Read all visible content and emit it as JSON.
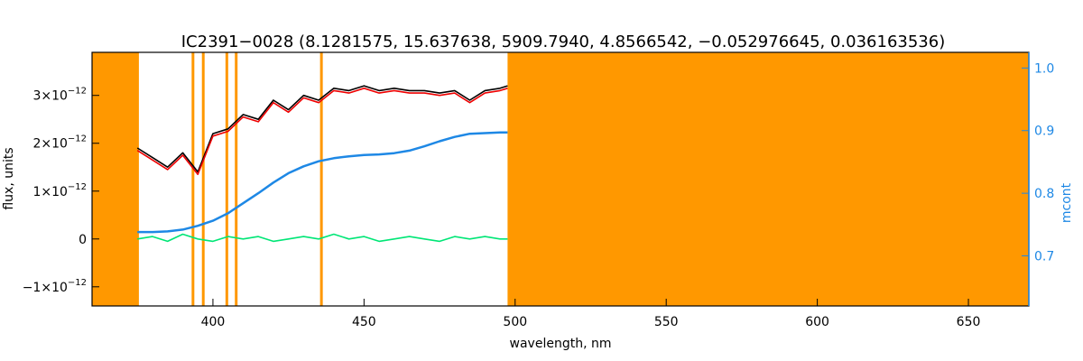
{
  "chart_data": {
    "type": "line",
    "title": "IC2391−0028    (8.1281575, 15.637638, 5909.7940, 4.8566542, −0.052976645, 0.036163536)",
    "xlabel": "wavelength, nm",
    "ylabel": "flux, units",
    "ylabel_right": "mcont",
    "xlim": [
      360,
      670
    ],
    "ylim": [
      -1.4e-12,
      3.9e-12
    ],
    "ylim_right": [
      0.62,
      1.025
    ],
    "x_ticks": [
      {
        "value": 400,
        "label": "400"
      },
      {
        "value": 450,
        "label": "450"
      },
      {
        "value": 500,
        "label": "500"
      },
      {
        "value": 550,
        "label": "550"
      },
      {
        "value": 600,
        "label": "600"
      },
      {
        "value": 650,
        "label": "650"
      }
    ],
    "y_ticks": [
      {
        "value": -1e-12,
        "mantissa": "−1×10",
        "exp": "−12"
      },
      {
        "value": 0,
        "mantissa": "0",
        "exp": ""
      },
      {
        "value": 1e-12,
        "mantissa": "1×10",
        "exp": "−12"
      },
      {
        "value": 2e-12,
        "mantissa": "2×10",
        "exp": "−12"
      },
      {
        "value": 3e-12,
        "mantissa": "3×10",
        "exp": "−12"
      }
    ],
    "y_ticks_right": [
      {
        "value": 0.7,
        "label": "0.7"
      },
      {
        "value": 0.8,
        "label": "0.8"
      },
      {
        "value": 0.9,
        "label": "0.9"
      },
      {
        "value": 1.0,
        "label": "1.0"
      }
    ],
    "masked_regions": [
      [
        360,
        375.5
      ],
      [
        497.5,
        670
      ]
    ],
    "masked_lines": [
      393.4,
      396.8,
      404.6,
      407.7,
      435.9
    ],
    "series": [
      {
        "color": "#000000",
        "x": [
          375,
          380,
          385,
          390,
          395,
          400,
          405,
          410,
          415,
          420,
          425,
          430,
          435,
          440,
          445,
          450,
          455,
          460,
          465,
          470,
          475,
          480,
          485,
          490,
          495,
          497.5
        ],
        "y": [
          1.9e-12,
          1.7e-12,
          1.5e-12,
          1.8e-12,
          1.4e-12,
          2.2e-12,
          2.3e-12,
          2.6e-12,
          2.5e-12,
          2.9e-12,
          2.7e-12,
          3e-12,
          2.9e-12,
          3.15e-12,
          3.1e-12,
          3.2e-12,
          3.1e-12,
          3.15e-12,
          3.1e-12,
          3.1e-12,
          3.05e-12,
          3.1e-12,
          2.9e-12,
          3.1e-12,
          3.15e-12,
          3.2e-12
        ]
      },
      {
        "color": "#ee0000",
        "x": [
          375,
          380,
          385,
          390,
          395,
          400,
          405,
          410,
          415,
          420,
          425,
          430,
          435,
          440,
          445,
          450,
          455,
          460,
          465,
          470,
          475,
          480,
          485,
          490,
          495,
          497.5
        ],
        "y": [
          1.85e-12,
          1.65e-12,
          1.45e-12,
          1.75e-12,
          1.35e-12,
          2.15e-12,
          2.25e-12,
          2.55e-12,
          2.45e-12,
          2.85e-12,
          2.65e-12,
          2.95e-12,
          2.85e-12,
          3.1e-12,
          3.05e-12,
          3.15e-12,
          3.05e-12,
          3.1e-12,
          3.05e-12,
          3.05e-12,
          3e-12,
          3.05e-12,
          2.85e-12,
          3.05e-12,
          3.1e-12,
          3.15e-12
        ]
      },
      {
        "color": "#00e676",
        "x": [
          375,
          380,
          385,
          390,
          395,
          400,
          405,
          410,
          415,
          420,
          425,
          430,
          435,
          440,
          445,
          450,
          455,
          460,
          465,
          470,
          475,
          480,
          485,
          490,
          495,
          497.5
        ],
        "y": [
          0.0,
          5e-14,
          -5e-14,
          1e-13,
          0.0,
          -5e-14,
          5e-14,
          0.0,
          5e-14,
          -5e-14,
          0.0,
          5e-14,
          0.0,
          1e-13,
          0.0,
          5e-14,
          -5e-14,
          0.0,
          5e-14,
          0.0,
          -5e-14,
          5e-14,
          0.0,
          5e-14,
          0.0,
          0.0
        ]
      },
      {
        "color": "#1e88e5",
        "axis": "right",
        "x": [
          375,
          380,
          385,
          390,
          395,
          400,
          405,
          410,
          415,
          420,
          425,
          430,
          435,
          440,
          445,
          450,
          455,
          460,
          465,
          470,
          475,
          480,
          485,
          490,
          495,
          497.5
        ],
        "y": [
          0.738,
          0.738,
          0.739,
          0.742,
          0.748,
          0.756,
          0.768,
          0.784,
          0.8,
          0.817,
          0.832,
          0.843,
          0.851,
          0.856,
          0.859,
          0.861,
          0.862,
          0.864,
          0.868,
          0.875,
          0.883,
          0.89,
          0.895,
          0.896,
          0.897,
          0.897
        ]
      }
    ],
    "grid": false,
    "legend": "none"
  }
}
